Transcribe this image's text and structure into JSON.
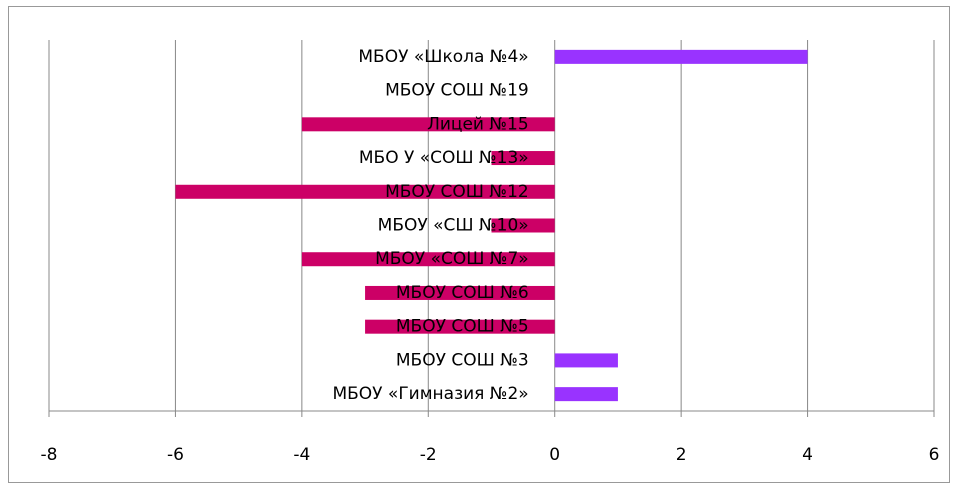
{
  "chart_data": {
    "type": "hbar",
    "categories": [
      "МБОУ «Школа №4»",
      "МБОУ СОШ №19",
      "Лицей №15",
      "МБО У «СОШ №13»",
      "МБОУ СОШ №12",
      "МБОУ «СШ №10»",
      "МБОУ «СОШ №7»",
      "МБОУ СОШ №6",
      "МБОУ СОШ №5",
      "МБОУ СОШ №3",
      "МБОУ «Гимназия №2»"
    ],
    "values": [
      4,
      0,
      -4,
      -1,
      -6,
      -1,
      -4,
      -3,
      -3,
      1,
      1
    ],
    "colors": [
      "#9933ff",
      "#9933ff",
      "#cc0066",
      "#cc0066",
      "#cc0066",
      "#cc0066",
      "#cc0066",
      "#cc0066",
      "#cc0066",
      "#9933ff",
      "#9933ff"
    ],
    "xlim": [
      -8,
      6
    ],
    "xticks": [
      -8,
      -6,
      -4,
      -2,
      0,
      2,
      4,
      6
    ],
    "grid": true
  }
}
